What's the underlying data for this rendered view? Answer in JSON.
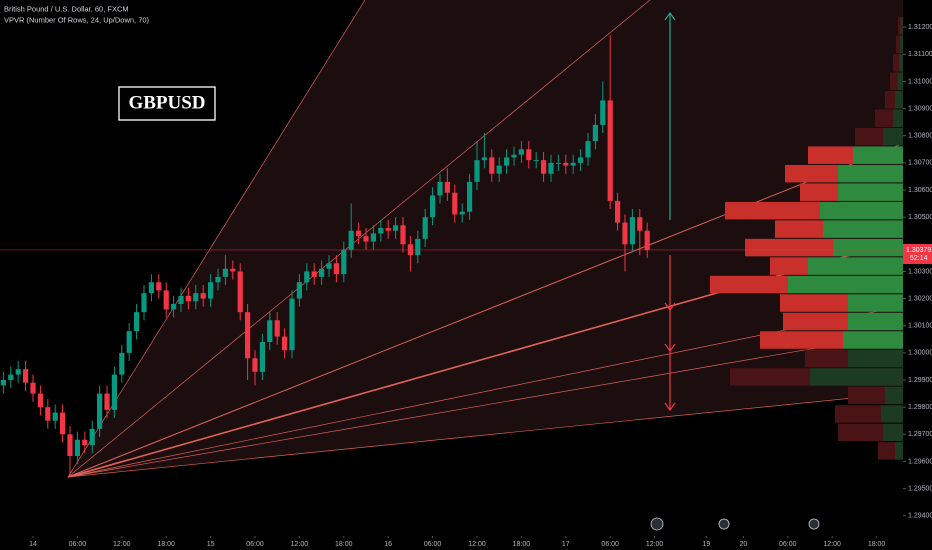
{
  "chart_data": {
    "type": "candlestick",
    "title": "British Pound / U.S. Dollar, 60, FXCM",
    "subtitle": "VPVR (Number Of Rows, 24, Up/Down, 70)",
    "annotation": "GBPUSD",
    "up_color": "#089981",
    "down_color": "#f23645",
    "candles": [
      [
        1.2988,
        1.2993,
        1.2985,
        1.299
      ],
      [
        1.299,
        1.2995,
        1.2987,
        1.2992
      ],
      [
        1.2992,
        1.2997,
        1.2989,
        1.2994
      ],
      [
        1.2994,
        1.2997,
        1.2986,
        1.2989
      ],
      [
        1.2989,
        1.2992,
        1.2982,
        1.2985
      ],
      [
        1.2985,
        1.2988,
        1.2977,
        1.298
      ],
      [
        1.298,
        1.2983,
        1.2972,
        1.2975
      ],
      [
        1.2975,
        1.2981,
        1.2972,
        1.2978
      ],
      [
        1.2978,
        1.2981,
        1.2967,
        1.297
      ],
      [
        1.297,
        1.2973,
        1.2955,
        1.2962
      ],
      [
        1.2962,
        1.2971,
        1.2959,
        1.2968
      ],
      [
        1.2968,
        1.2971,
        1.2963,
        1.2966
      ],
      [
        1.2966,
        1.2975,
        1.2963,
        1.2972
      ],
      [
        1.2972,
        1.2988,
        1.2969,
        1.2985
      ],
      [
        1.2985,
        1.2988,
        1.2976,
        1.2979
      ],
      [
        1.2979,
        1.2995,
        1.2976,
        1.2992
      ],
      [
        1.2992,
        1.3003,
        1.2989,
        1.3
      ],
      [
        1.3,
        1.3011,
        1.2997,
        1.3008
      ],
      [
        1.3008,
        1.3018,
        1.3005,
        1.3015
      ],
      [
        1.3015,
        1.3025,
        1.3012,
        1.3022
      ],
      [
        1.3022,
        1.3029,
        1.3019,
        1.3026
      ],
      [
        1.3026,
        1.3029,
        1.302,
        1.3023
      ],
      [
        1.3023,
        1.3026,
        1.3013,
        1.3016
      ],
      [
        1.3016,
        1.3021,
        1.3013,
        1.3018
      ],
      [
        1.3018,
        1.3024,
        1.3015,
        1.3021
      ],
      [
        1.3021,
        1.3024,
        1.3016,
        1.3019
      ],
      [
        1.3019,
        1.3025,
        1.3016,
        1.3022
      ],
      [
        1.3022,
        1.3025,
        1.3017,
        1.302
      ],
      [
        1.302,
        1.3029,
        1.3017,
        1.3026
      ],
      [
        1.3026,
        1.3031,
        1.3023,
        1.3028
      ],
      [
        1.3028,
        1.3036,
        1.3025,
        1.3031
      ],
      [
        1.3031,
        1.3034,
        1.3027,
        1.303
      ],
      [
        1.303,
        1.3033,
        1.3012,
        1.3015
      ],
      [
        1.3015,
        1.3018,
        1.299,
        1.2998
      ],
      [
        1.2998,
        1.3001,
        1.2988,
        1.2993
      ],
      [
        1.2993,
        1.3007,
        1.299,
        1.3004
      ],
      [
        1.3004,
        1.3015,
        1.3001,
        1.3012
      ],
      [
        1.3012,
        1.3015,
        1.3003,
        1.3006
      ],
      [
        1.3006,
        1.3009,
        1.2998,
        1.3001
      ],
      [
        1.3001,
        1.3023,
        1.2998,
        1.302
      ],
      [
        1.302,
        1.3029,
        1.3017,
        1.3026
      ],
      [
        1.3026,
        1.3033,
        1.3023,
        1.303
      ],
      [
        1.303,
        1.3033,
        1.3025,
        1.3028
      ],
      [
        1.3028,
        1.3034,
        1.3025,
        1.3031
      ],
      [
        1.3031,
        1.3036,
        1.3028,
        1.3033
      ],
      [
        1.3033,
        1.3036,
        1.3026,
        1.3029
      ],
      [
        1.3029,
        1.3041,
        1.3026,
        1.3038
      ],
      [
        1.3038,
        1.3055,
        1.3035,
        1.3045
      ],
      [
        1.3045,
        1.3048,
        1.304,
        1.3043
      ],
      [
        1.3043,
        1.3046,
        1.3038,
        1.3041
      ],
      [
        1.3041,
        1.3047,
        1.3038,
        1.3044
      ],
      [
        1.3044,
        1.3049,
        1.3041,
        1.3046
      ],
      [
        1.3046,
        1.3049,
        1.3042,
        1.3045
      ],
      [
        1.3045,
        1.305,
        1.3042,
        1.3047
      ],
      [
        1.3047,
        1.305,
        1.3037,
        1.304
      ],
      [
        1.304,
        1.3043,
        1.303,
        1.3036
      ],
      [
        1.3036,
        1.3045,
        1.3033,
        1.3042
      ],
      [
        1.3042,
        1.3053,
        1.3039,
        1.305
      ],
      [
        1.305,
        1.3061,
        1.3047,
        1.3058
      ],
      [
        1.3058,
        1.3066,
        1.3055,
        1.3063
      ],
      [
        1.3063,
        1.3068,
        1.3056,
        1.3059
      ],
      [
        1.3059,
        1.3062,
        1.3048,
        1.3051
      ],
      [
        1.3051,
        1.3055,
        1.3048,
        1.3052
      ],
      [
        1.3052,
        1.3066,
        1.3049,
        1.3063
      ],
      [
        1.3063,
        1.3078,
        1.306,
        1.3071
      ],
      [
        1.3071,
        1.3081,
        1.3068,
        1.3072
      ],
      [
        1.3072,
        1.3075,
        1.3063,
        1.3066
      ],
      [
        1.3066,
        1.3072,
        1.3063,
        1.3069
      ],
      [
        1.3069,
        1.3075,
        1.3066,
        1.3072
      ],
      [
        1.3072,
        1.3076,
        1.3069,
        1.3073
      ],
      [
        1.3073,
        1.3078,
        1.307,
        1.3075
      ],
      [
        1.3075,
        1.3078,
        1.3068,
        1.3071
      ],
      [
        1.3071,
        1.3074,
        1.3068,
        1.3071
      ],
      [
        1.3071,
        1.3074,
        1.3063,
        1.3066
      ],
      [
        1.3066,
        1.3073,
        1.3063,
        1.307
      ],
      [
        1.307,
        1.3073,
        1.3067,
        1.307
      ],
      [
        1.307,
        1.3073,
        1.3066,
        1.3069
      ],
      [
        1.3069,
        1.3073,
        1.3066,
        1.307
      ],
      [
        1.307,
        1.3075,
        1.3067,
        1.3072
      ],
      [
        1.3072,
        1.3081,
        1.3069,
        1.3078
      ],
      [
        1.3078,
        1.3088,
        1.3075,
        1.3084
      ],
      [
        1.3084,
        1.31,
        1.3081,
        1.3093
      ],
      [
        1.3093,
        1.3117,
        1.3053,
        1.3056
      ],
      [
        1.3056,
        1.3059,
        1.3045,
        1.3048
      ],
      [
        1.3048,
        1.3051,
        1.303,
        1.304
      ],
      [
        1.304,
        1.3053,
        1.3037,
        1.305
      ],
      [
        1.305,
        1.3053,
        1.3036,
        1.3045
      ],
      [
        1.3045,
        1.3048,
        1.3035,
        1.30379
      ]
    ],
    "last_price": 1.30379,
    "countdown": "52:14",
    "xlim": [
      -0.46,
      121.57
    ],
    "xticks": [
      {
        "value": 4,
        "label": "14"
      },
      {
        "value": 10,
        "label": "06:00"
      },
      {
        "value": 16,
        "label": "12:00"
      },
      {
        "value": 22,
        "label": "18:00"
      },
      {
        "value": 28,
        "label": "15"
      },
      {
        "value": 34,
        "label": "06:00"
      },
      {
        "value": 40,
        "label": "12:00"
      },
      {
        "value": 46,
        "label": "18:00"
      },
      {
        "value": 52,
        "label": "16"
      },
      {
        "value": 58,
        "label": "06:00"
      },
      {
        "value": 64,
        "label": "12:00"
      },
      {
        "value": 70,
        "label": "18:00"
      },
      {
        "value": 76,
        "label": "17"
      },
      {
        "value": 82,
        "label": "06:00"
      },
      {
        "value": 88,
        "label": "12:00"
      },
      {
        "value": 95,
        "label": "19"
      },
      {
        "value": 100,
        "label": "20"
      },
      {
        "value": 106,
        "label": "06:00"
      },
      {
        "value": 112,
        "label": "12:00"
      },
      {
        "value": 118,
        "label": "18:00"
      }
    ],
    "ylim": [
      1.2934,
      1.313
    ],
    "yticks": [
      {
        "value": 1.294,
        "label": "1.29400"
      },
      {
        "value": 1.295,
        "label": "1.29500"
      },
      {
        "value": 1.296,
        "label": "1.29600"
      },
      {
        "value": 1.297,
        "label": "1.29700"
      },
      {
        "value": 1.298,
        "label": "1.29800"
      },
      {
        "value": 1.299,
        "label": "1.29900"
      },
      {
        "value": 1.3,
        "label": "1.30000"
      },
      {
        "value": 1.301,
        "label": "1.30100"
      },
      {
        "value": 1.302,
        "label": "1.30200"
      },
      {
        "value": 1.303,
        "label": "1.30300"
      },
      {
        "value": 1.305,
        "label": "1.30500"
      },
      {
        "value": 1.306,
        "label": "1.30600"
      },
      {
        "value": 1.307,
        "label": "1.30700"
      },
      {
        "value": 1.308,
        "label": "1.30800"
      },
      {
        "value": 1.309,
        "label": "1.30900"
      },
      {
        "value": 1.31,
        "label": "1.31000"
      },
      {
        "value": 1.311,
        "label": "1.31100"
      },
      {
        "value": 1.312,
        "label": "1.31200"
      }
    ],
    "profile": {
      "price_range": [
        1.29603,
        1.31237
      ],
      "value_area": [
        1.3003,
        1.3077
      ],
      "up": [
        8,
        20,
        22,
        18,
        93,
        55,
        60,
        55,
        55,
        115,
        95,
        70,
        80,
        83,
        65,
        65,
        50,
        20,
        10,
        8,
        5,
        4,
        3,
        2
      ],
      "down": [
        17,
        45,
        46,
        37,
        80,
        43,
        83,
        65,
        68,
        78,
        38,
        88,
        48,
        95,
        38,
        53,
        45,
        28,
        18,
        10,
        8,
        6,
        4,
        3
      ]
    }
  }
}
